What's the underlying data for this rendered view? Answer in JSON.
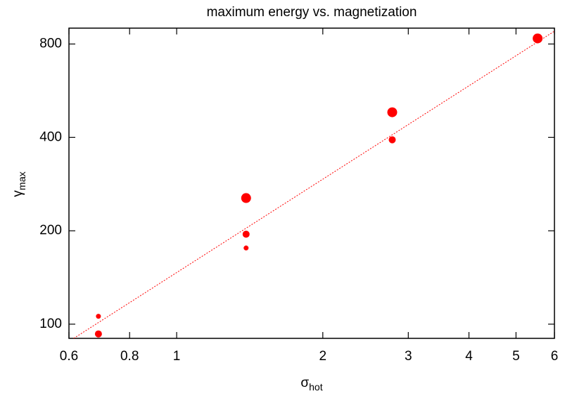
{
  "chart_data": {
    "type": "scatter",
    "title": "maximum energy vs. magnetization",
    "x_label": "σ",
    "x_label_sub": "hot",
    "y_label": "γ",
    "y_label_sub": "max",
    "xscale": "log",
    "yscale": "log",
    "xlim": [
      0.6,
      6
    ],
    "ylim": [
      90,
      900
    ],
    "xticks": [
      0.6,
      0.8,
      1,
      2,
      3,
      4,
      5,
      6
    ],
    "yticks": [
      100,
      200,
      400,
      800
    ],
    "series": [
      {
        "color": "#ff0000",
        "marker_size": 7,
        "x": [
          1.39,
          2.78,
          5.54
        ],
        "values": [
          255,
          482,
          834
        ]
      },
      {
        "color": "#ff0000",
        "marker_size": 5,
        "x": [
          0.69,
          1.39,
          2.78
        ],
        "values": [
          93,
          195,
          393
        ]
      },
      {
        "color": "#ff0000",
        "marker_size": 3.5,
        "x": [
          0.69,
          1.39
        ],
        "values": [
          106,
          176
        ]
      }
    ],
    "fit_line": {
      "color": "#ff0000",
      "dash": "2,2",
      "x": [
        0.6,
        6
      ],
      "values": [
        88,
        880
      ]
    }
  }
}
